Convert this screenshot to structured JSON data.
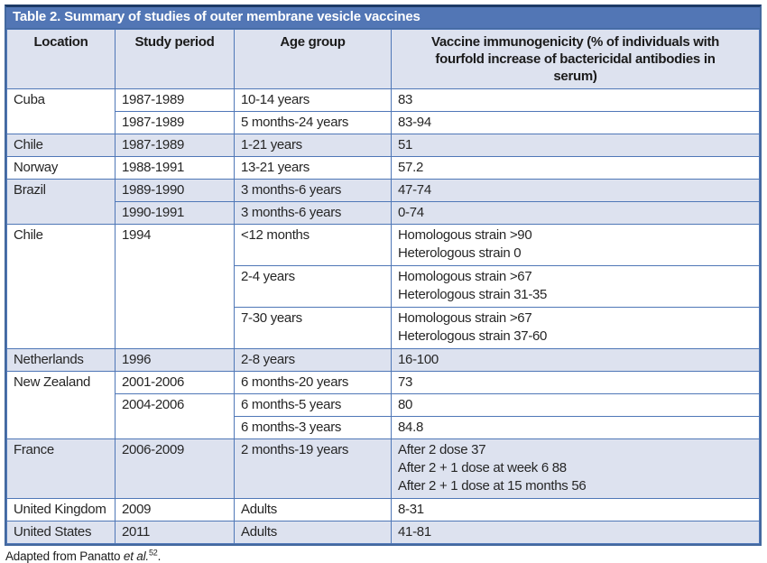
{
  "table": {
    "title": "Table 2. Summary of studies of outer membrane vesicle vaccines",
    "columns": [
      "Location",
      "Study period",
      "Age group",
      "Vaccine immunogenicity (% of individuals with fourfold increase of bactericidal antibodies in serum)"
    ],
    "rows": [
      {
        "shade": "white",
        "cells": [
          {
            "t": "Cuba",
            "rs": 2
          },
          {
            "t": "1987-1989"
          },
          {
            "t": "10-14 years"
          },
          {
            "t": "83"
          }
        ]
      },
      {
        "shade": "white",
        "cells": [
          {
            "t": "1987-1989"
          },
          {
            "t": "5 months-24 years"
          },
          {
            "t": "83-94"
          }
        ]
      },
      {
        "shade": "alt",
        "cells": [
          {
            "t": "Chile"
          },
          {
            "t": "1987-1989"
          },
          {
            "t": "1-21 years"
          },
          {
            "t": "51"
          }
        ]
      },
      {
        "shade": "white",
        "cells": [
          {
            "t": "Norway"
          },
          {
            "t": "1988-1991"
          },
          {
            "t": "13-21 years"
          },
          {
            "t": "57.2"
          }
        ]
      },
      {
        "shade": "alt",
        "cells": [
          {
            "t": "Brazil",
            "rs": 2
          },
          {
            "t": "1989-1990"
          },
          {
            "t": "3 months-6 years"
          },
          {
            "t": "47-74"
          }
        ]
      },
      {
        "shade": "alt",
        "cells": [
          {
            "t": "1990-1991"
          },
          {
            "t": "3 months-6 years"
          },
          {
            "t": "0-74"
          }
        ]
      },
      {
        "shade": "white",
        "cells": [
          {
            "t": "Chile",
            "rs": 3
          },
          {
            "t": "1994",
            "rs": 3
          },
          {
            "t": "<12 months"
          },
          {
            "lines": [
              "Homologous strain >90",
              "Heterologous strain 0"
            ]
          }
        ]
      },
      {
        "shade": "white",
        "cells": [
          {
            "t": "2-4 years"
          },
          {
            "lines": [
              "Homologous strain >67",
              "Heterologous strain 31-35"
            ]
          }
        ]
      },
      {
        "shade": "white",
        "cells": [
          {
            "t": "7-30 years"
          },
          {
            "lines": [
              "Homologous strain >67",
              "Heterologous strain 37-60"
            ]
          }
        ]
      },
      {
        "shade": "alt",
        "cells": [
          {
            "t": "Netherlands"
          },
          {
            "t": "1996"
          },
          {
            "t": "2-8 years"
          },
          {
            "t": "16-100"
          }
        ]
      },
      {
        "shade": "white",
        "cells": [
          {
            "t": "New Zealand",
            "rs": 3
          },
          {
            "t": "2001-2006"
          },
          {
            "t": "6 months-20 years"
          },
          {
            "t": "73"
          }
        ]
      },
      {
        "shade": "white",
        "cells": [
          {
            "t": "2004-2006",
            "rs": 2
          },
          {
            "t": "6 months-5 years"
          },
          {
            "t": "80"
          }
        ]
      },
      {
        "shade": "white",
        "cells": [
          {
            "t": "6 months-3 years"
          },
          {
            "t": "84.8"
          }
        ]
      },
      {
        "shade": "alt",
        "cells": [
          {
            "t": "France"
          },
          {
            "t": "2006-2009"
          },
          {
            "t": "2 months-19 years"
          },
          {
            "lines": [
              "After 2 dose 37",
              "After 2 + 1 dose at week 6 88",
              "After 2 + 1 dose at 15 months 56"
            ]
          }
        ]
      },
      {
        "shade": "white",
        "cells": [
          {
            "t": "United Kingdom"
          },
          {
            "t": "2009"
          },
          {
            "t": "Adults"
          },
          {
            "t": "8-31"
          }
        ]
      },
      {
        "shade": "alt",
        "cells": [
          {
            "t": "United States"
          },
          {
            "t": "2011"
          },
          {
            "t": "Adults"
          },
          {
            "t": "41-81"
          }
        ]
      }
    ]
  },
  "footer": {
    "prefix": "Adapted from Panatto ",
    "italic": "et al.",
    "superscript": "52",
    "suffix": "."
  },
  "colors": {
    "title_bar": "#5276b5",
    "title_text": "#ffffff",
    "row_alt": "#dde2ef",
    "grid_border": "#4f77b7",
    "outer_border": "#44699f",
    "top_border": "#1d3a66",
    "body_text": "#262626"
  }
}
